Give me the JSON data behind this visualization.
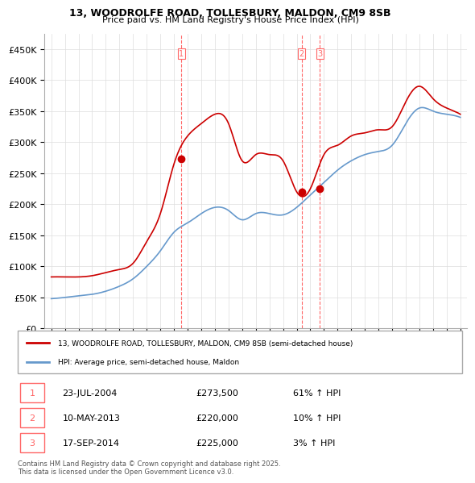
{
  "title_line1": "13, WOODROLFE ROAD, TOLLESBURY, MALDON, CM9 8SB",
  "title_line2": "Price paid vs. HM Land Registry's House Price Index (HPI)",
  "ylabel_ticks": [
    "£0",
    "£50K",
    "£100K",
    "£150K",
    "£200K",
    "£250K",
    "£300K",
    "£350K",
    "£400K",
    "£450K"
  ],
  "ytick_values": [
    0,
    50000,
    100000,
    150000,
    200000,
    250000,
    300000,
    350000,
    400000,
    450000
  ],
  "xlim_start": 1994.5,
  "xlim_end": 2025.5,
  "ylim": [
    0,
    475000
  ],
  "background_color": "#ffffff",
  "grid_color": "#dddddd",
  "red_color": "#cc0000",
  "blue_color": "#6699cc",
  "dashed_red_color": "#ff6666",
  "legend_label_red": "13, WOODROLFE ROAD, TOLLESBURY, MALDON, CM9 8SB (semi-detached house)",
  "legend_label_blue": "HPI: Average price, semi-detached house, Maldon",
  "sale_markers": [
    {
      "num": 1,
      "year": 2004.55,
      "price": 273500,
      "date": "23-JUL-2004",
      "pct": "61%",
      "dir": "↑"
    },
    {
      "num": 2,
      "year": 2013.36,
      "price": 220000,
      "date": "10-MAY-2013",
      "pct": "10%",
      "dir": "↑"
    },
    {
      "num": 3,
      "year": 2014.71,
      "price": 225000,
      "date": "17-SEP-2014",
      "pct": "3%",
      "dir": "↑"
    }
  ],
  "table_rows": [
    {
      "num": 1,
      "date": "23-JUL-2004",
      "price": "£273,500",
      "pct": "61% ↑ HPI"
    },
    {
      "num": 2,
      "date": "10-MAY-2013",
      "price": "£220,000",
      "pct": "10% ↑ HPI"
    },
    {
      "num": 3,
      "date": "17-SEP-2014",
      "price": "£225,000",
      "pct": "3% ↑ HPI"
    }
  ],
  "footnote": "Contains HM Land Registry data © Crown copyright and database right 2025.\nThis data is licensed under the Open Government Licence v3.0.",
  "hpi_data": {
    "years": [
      1995,
      1996,
      1997,
      1998,
      1999,
      2000,
      2001,
      2002,
      2003,
      2004,
      2005,
      2006,
      2007,
      2008,
      2009,
      2010,
      2011,
      2012,
      2013,
      2014,
      2015,
      2016,
      2017,
      2018,
      2019,
      2020,
      2021,
      2022,
      2023,
      2024,
      2025
    ],
    "blue_values": [
      48000,
      50000,
      52500,
      55000,
      60000,
      68000,
      80000,
      100000,
      125000,
      155000,
      170000,
      185000,
      195000,
      190000,
      175000,
      185000,
      185000,
      183000,
      195000,
      215000,
      235000,
      255000,
      270000,
      280000,
      285000,
      295000,
      330000,
      355000,
      350000,
      345000,
      340000
    ],
    "red_values": [
      83000,
      83000,
      83000,
      85000,
      90000,
      95000,
      105000,
      140000,
      185000,
      265000,
      310000,
      330000,
      345000,
      330000,
      270000,
      280000,
      280000,
      270000,
      220000,
      225000,
      280000,
      295000,
      310000,
      315000,
      320000,
      325000,
      365000,
      390000,
      370000,
      355000,
      345000
    ]
  }
}
